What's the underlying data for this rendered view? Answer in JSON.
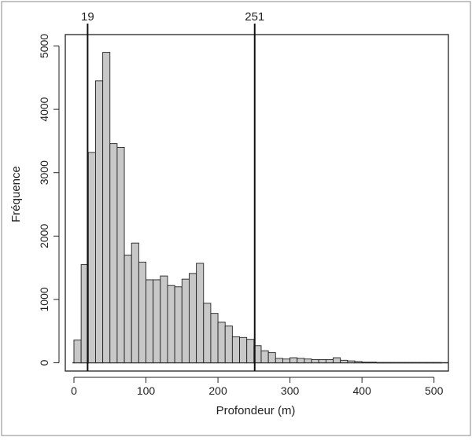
{
  "chart_data": {
    "type": "bar",
    "title": "",
    "xlabel": "Profondeur (m)",
    "ylabel": "Fréquence",
    "xlim": [
      -12,
      520
    ],
    "ylim": [
      -130,
      5180
    ],
    "bin_width": 10,
    "bin_starts": [
      0,
      10,
      20,
      30,
      40,
      50,
      60,
      70,
      80,
      90,
      100,
      110,
      120,
      130,
      140,
      150,
      160,
      170,
      180,
      190,
      200,
      210,
      220,
      230,
      240,
      250,
      260,
      270,
      280,
      290,
      300,
      310,
      320,
      330,
      340,
      350,
      360,
      370,
      380,
      390,
      400,
      410,
      420,
      430,
      440,
      450,
      460,
      470,
      480,
      490,
      500
    ],
    "frequencies": [
      360,
      1550,
      3320,
      4450,
      4900,
      3460,
      3400,
      1700,
      1890,
      1590,
      1310,
      1310,
      1370,
      1220,
      1200,
      1320,
      1410,
      1570,
      940,
      780,
      640,
      580,
      410,
      400,
      370,
      270,
      190,
      160,
      70,
      60,
      80,
      70,
      60,
      50,
      50,
      50,
      80,
      40,
      30,
      20,
      10,
      10,
      5,
      5,
      5,
      5,
      5,
      5,
      5,
      5,
      5
    ],
    "x_ticks": [
      0,
      100,
      200,
      300,
      400,
      500
    ],
    "y_ticks": [
      0,
      1000,
      2000,
      3000,
      4000,
      5000
    ],
    "vertical_markers": [
      {
        "value": 19,
        "label": "19"
      },
      {
        "value": 251,
        "label": "251"
      }
    ],
    "grid": false,
    "bar_color": "#c8c8c8",
    "bar_edge_color": "#222222"
  }
}
